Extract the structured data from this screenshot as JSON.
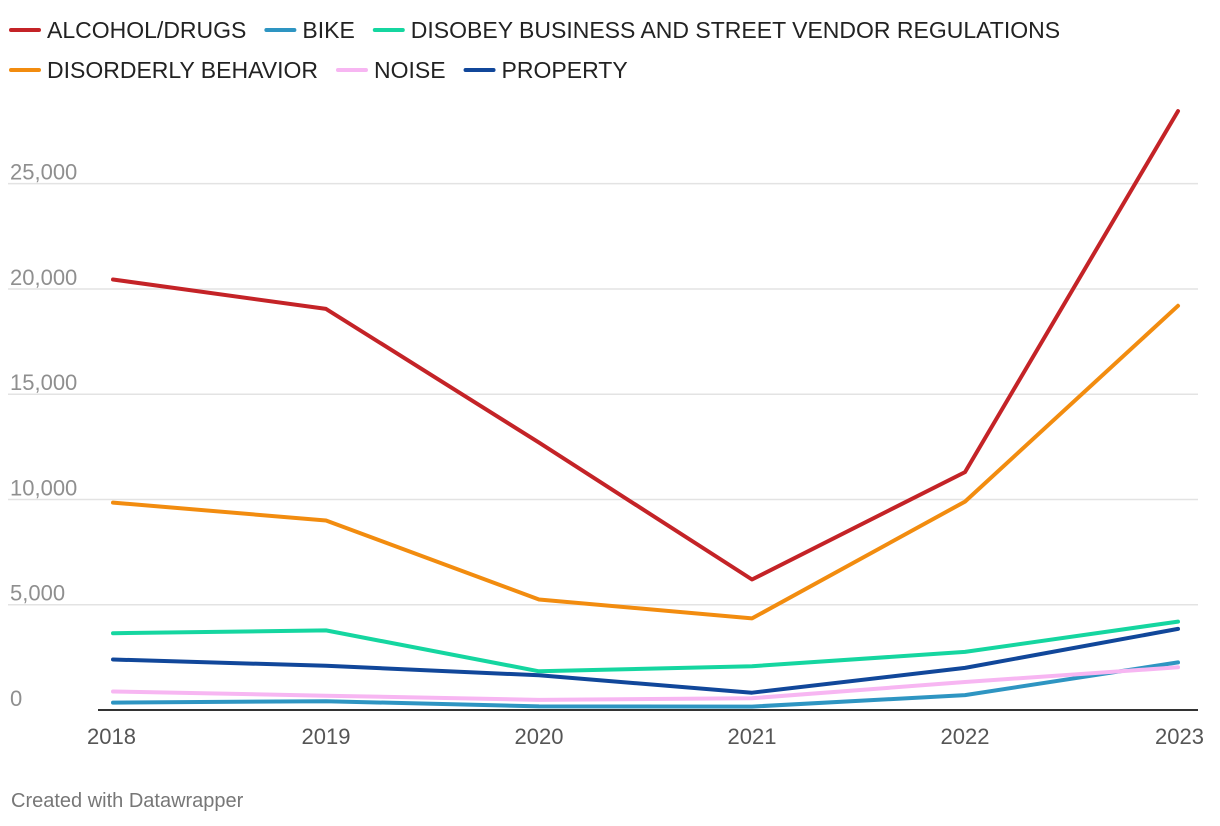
{
  "chart_data": {
    "type": "line",
    "title": "",
    "xlabel": "",
    "ylabel": "",
    "x": [
      "2018",
      "2019",
      "2020",
      "2021",
      "2022",
      "2023"
    ],
    "ylim": [
      0,
      28500
    ],
    "yticks": [
      0,
      5000,
      10000,
      15000,
      20000,
      25000
    ],
    "ytick_labels": [
      "0",
      "5,000",
      "10,000",
      "15,000",
      "20,000",
      "25,000"
    ],
    "grid": true,
    "legend_position": "top-left",
    "series": [
      {
        "name": "ALCOHOL/DRUGS",
        "color": "#c42327",
        "values": [
          20450,
          19050,
          12700,
          6200,
          11300,
          28450
        ]
      },
      {
        "name": "BIKE",
        "color": "#2e95c2",
        "values": [
          350,
          420,
          170,
          160,
          710,
          2260
        ]
      },
      {
        "name": "DISOBEY BUSINESS AND STREET VENDOR REGULATIONS",
        "color": "#15d6a0",
        "values": [
          3650,
          3780,
          1840,
          2080,
          2760,
          4200
        ]
      },
      {
        "name": "DISORDERLY BEHAVIOR",
        "color": "#f28c0f",
        "values": [
          9850,
          9000,
          5250,
          4350,
          9900,
          19200
        ]
      },
      {
        "name": "NOISE",
        "color": "#f7b6f2",
        "values": [
          880,
          680,
          480,
          560,
          1330,
          2030
        ]
      },
      {
        "name": "PROPERTY",
        "color": "#11479a",
        "values": [
          2400,
          2100,
          1650,
          820,
          2000,
          3850
        ]
      }
    ]
  },
  "footer": {
    "credit": "Created with Datawrapper"
  }
}
